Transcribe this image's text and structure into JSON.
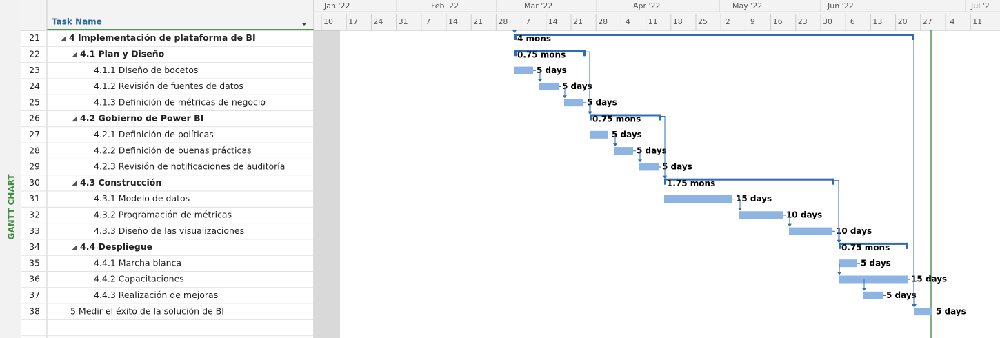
{
  "sidebar_label": "GANTT CHART",
  "header": {
    "task_name": "Task Name"
  },
  "timeline": {
    "months": [
      "Jan '22",
      "Feb '22",
      "Mar '22",
      "Apr '22",
      "May '22",
      "Jun '22",
      "Jul '2"
    ],
    "weeks": [
      10,
      17,
      24,
      31,
      7,
      14,
      21,
      28,
      7,
      14,
      21,
      28,
      4,
      11,
      18,
      25,
      2,
      9,
      16,
      23,
      30,
      6,
      13,
      20,
      27,
      4,
      11
    ]
  },
  "rows": [
    {
      "id": 21,
      "name": "4 Implementación de plataforma de BI",
      "duration": "4 mons"
    },
    {
      "id": 22,
      "name": "4.1 Plan y Diseño",
      "duration": "0.75 mons"
    },
    {
      "id": 23,
      "name": "4.1.1 Diseño de bocetos",
      "duration": "5 days"
    },
    {
      "id": 24,
      "name": "4.1.2 Revisión de fuentes de datos",
      "duration": "5 days"
    },
    {
      "id": 25,
      "name": "4.1.3 Definición de métricas de negocio",
      "duration": "5 days"
    },
    {
      "id": 26,
      "name": "4.2 Gobierno de Power BI",
      "duration": "0.75 mons"
    },
    {
      "id": 27,
      "name": "4.2.1 Definición de políticas",
      "duration": "5 days"
    },
    {
      "id": 28,
      "name": "4.2.2 Definición de buenas prácticas",
      "duration": "5 days"
    },
    {
      "id": 29,
      "name": "4.2.3 Revisión de notificaciones de auditoría",
      "duration": "5 days"
    },
    {
      "id": 30,
      "name": "4.3 Construcción",
      "duration": "1.75 mons"
    },
    {
      "id": 31,
      "name": "4.3.1 Modelo de datos",
      "duration": "15 days"
    },
    {
      "id": 32,
      "name": "4.3.2 Programación de métricas",
      "duration": "10 days"
    },
    {
      "id": 33,
      "name": "4.3.3 Diseño de las visualizaciones",
      "duration": "10 days"
    },
    {
      "id": 34,
      "name": "4.4 Despliegue",
      "duration": "0.75 mons"
    },
    {
      "id": 35,
      "name": "4.4.1 Marcha blanca",
      "duration": "5 days"
    },
    {
      "id": 36,
      "name": "4.4.2 Capacitaciones",
      "duration": "15 days"
    },
    {
      "id": 37,
      "name": "4.4.3 Realización de mejoras",
      "duration": "5 days"
    },
    {
      "id": 38,
      "name": "5 Medir el éxito de la solución de BI",
      "duration": "5 days"
    }
  ]
}
